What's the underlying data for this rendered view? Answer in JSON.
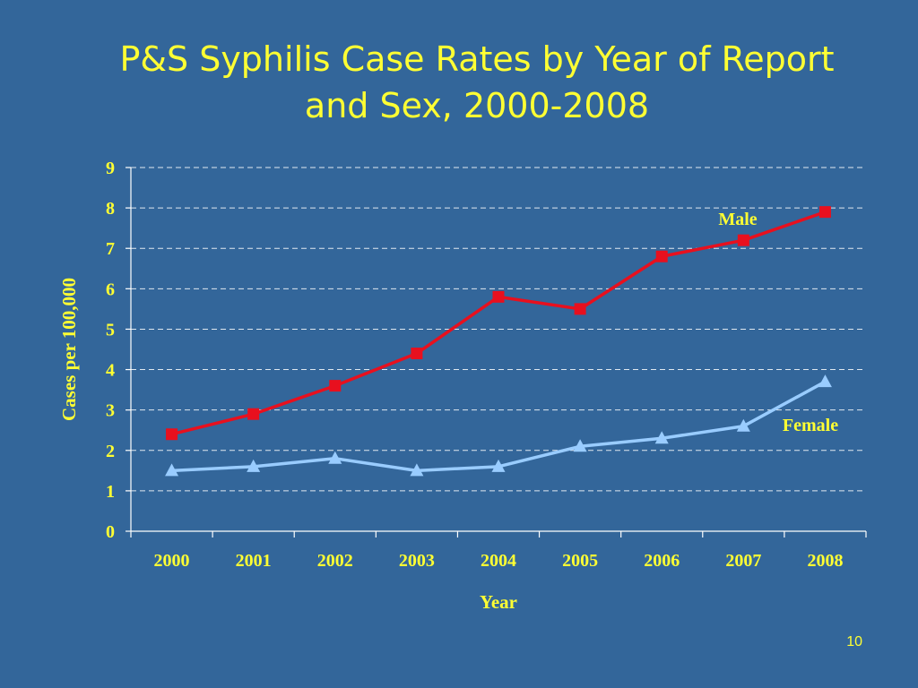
{
  "slide": {
    "title_line1": "P&S Syphilis Case Rates by Year of Report",
    "title_line2": "and Sex, 2000-2008",
    "page_number": "10"
  },
  "colors": {
    "background": "#33669A",
    "text": "#FFFF33",
    "grid": "#FFFFFF",
    "male": "#E8101E",
    "female": "#99CCFF"
  },
  "chart_data": {
    "type": "line",
    "title": "P&S Syphilis Case Rates by Year of Report and Sex, 2000-2008",
    "xlabel": "Year",
    "ylabel": "Cases per 100,000",
    "categories": [
      "2000",
      "2001",
      "2002",
      "2003",
      "2004",
      "2005",
      "2006",
      "2007",
      "2008"
    ],
    "ylim": [
      0,
      9
    ],
    "yticks": [
      "0",
      "1",
      "2",
      "3",
      "4",
      "5",
      "6",
      "7",
      "8",
      "9"
    ],
    "grid": true,
    "series": [
      {
        "name": "Male",
        "marker": "square",
        "values": [
          2.4,
          2.9,
          3.6,
          4.4,
          5.8,
          5.5,
          6.8,
          7.2,
          7.9
        ]
      },
      {
        "name": "Female",
        "marker": "triangle",
        "values": [
          1.5,
          1.6,
          1.8,
          1.5,
          1.6,
          2.1,
          2.3,
          2.6,
          3.7
        ]
      }
    ]
  }
}
